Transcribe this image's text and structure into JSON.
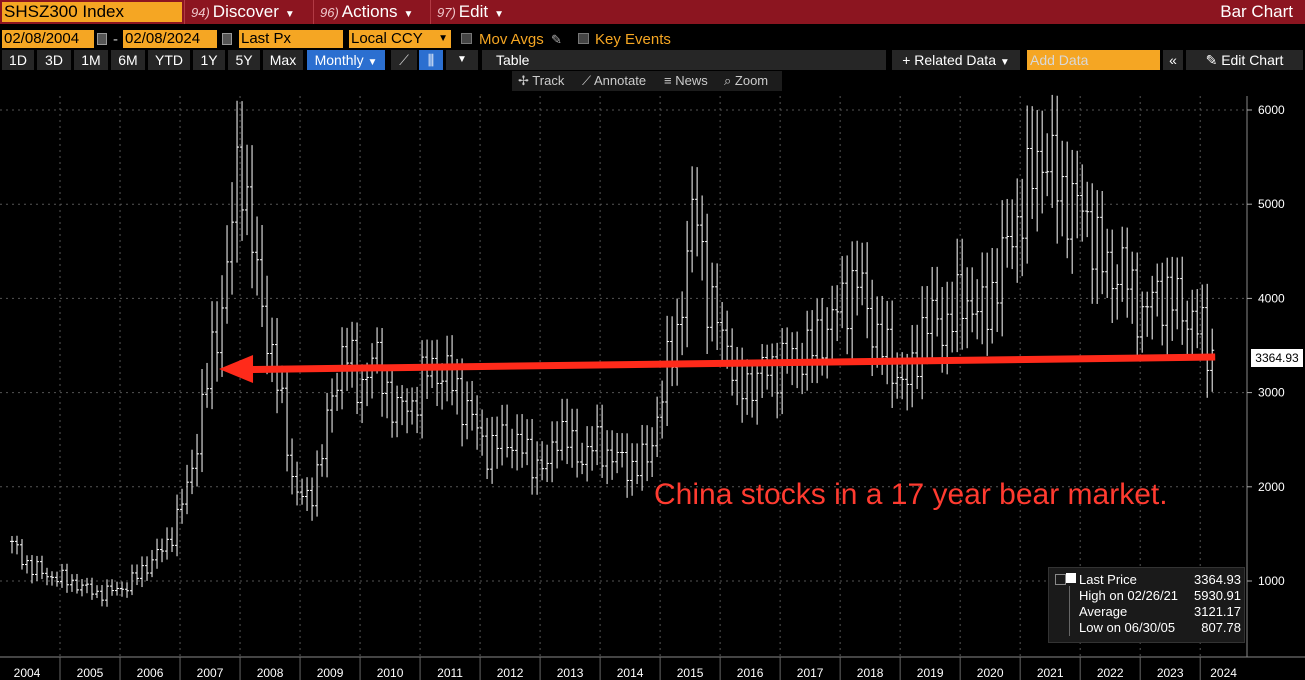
{
  "menubar": {
    "ticker": "SHSZ300 Index",
    "items": [
      {
        "num": "94)",
        "label": "Discover"
      },
      {
        "num": "96)",
        "label": "Actions"
      },
      {
        "num": "97)",
        "label": "Edit"
      }
    ],
    "chart_type_title": "Bar Chart"
  },
  "controls": {
    "start_date": "02/08/2004",
    "date_sep": "-",
    "end_date": "02/08/2024",
    "field": "Last Px",
    "currency": "Local CCY",
    "mov_avgs": "Mov Avgs",
    "key_events": "Key Events"
  },
  "periods": [
    "1D",
    "3D",
    "1M",
    "6M",
    "YTD",
    "1Y",
    "5Y",
    "Max"
  ],
  "frequency": "Monthly",
  "table_label": "Table",
  "related_data": "+ Related Data",
  "add_data_placeholder": "Add Data",
  "edit_chart": "Edit Chart",
  "tools": {
    "track": "Track",
    "annotate": "Annotate",
    "news": "News",
    "zoom": "Zoom"
  },
  "legend": {
    "last_price_label": "Last Price",
    "last_price_value": "3364.93",
    "high_label": "High on 02/26/21",
    "high_value": "5930.91",
    "avg_label": "Average",
    "avg_value": "3121.17",
    "low_label": "Low on 06/30/05",
    "low_value": "807.78"
  },
  "annotation_text": "China stocks in a 17 year bear market.",
  "last_price_tag": "3364.93",
  "colors": {
    "menubar": "#8c1520",
    "field": "#f5a623",
    "annotation": "#ff3b30",
    "selected": "#2b6fd0"
  },
  "chart_data": {
    "type": "bar",
    "xlabel": "",
    "ylabel": "",
    "ylim": [
      400,
      6300
    ],
    "yticks": [
      1000,
      2000,
      3000,
      4000,
      5000,
      6000
    ],
    "xticks": [
      "2004",
      "2005",
      "2006",
      "2007",
      "2008",
      "2009",
      "2010",
      "2011",
      "2012",
      "2013",
      "2014",
      "2015",
      "2016",
      "2017",
      "2018",
      "2019",
      "2020",
      "2021",
      "2022",
      "2023",
      "2024"
    ],
    "x_range": [
      2004.0,
      2024.28
    ],
    "grid": true,
    "arrow": {
      "from": {
        "x": 2024.05,
        "y": 3250
      },
      "to": {
        "x": 2007.45,
        "y": 3250
      }
    },
    "anchors": [
      [
        2004.0,
        1380
      ],
      [
        2004.3,
        1150
      ],
      [
        2004.6,
        1060
      ],
      [
        2004.95,
        1000
      ],
      [
        2005.45,
        860
      ],
      [
        2005.9,
        940
      ],
      [
        2006.3,
        1200
      ],
      [
        2006.6,
        1400
      ],
      [
        2006.95,
        2040
      ],
      [
        2007.3,
        3300
      ],
      [
        2007.55,
        4100
      ],
      [
        2007.8,
        5600
      ],
      [
        2008.1,
        4100
      ],
      [
        2008.4,
        3200
      ],
      [
        2008.7,
        2000
      ],
      [
        2008.95,
        1800
      ],
      [
        2009.3,
        2800
      ],
      [
        2009.55,
        3600
      ],
      [
        2009.75,
        3000
      ],
      [
        2010.0,
        3400
      ],
      [
        2010.4,
        2800
      ],
      [
        2010.7,
        2900
      ],
      [
        2010.95,
        3300
      ],
      [
        2011.3,
        3150
      ],
      [
        2011.6,
        2800
      ],
      [
        2011.95,
        2350
      ],
      [
        2012.2,
        2550
      ],
      [
        2012.5,
        2400
      ],
      [
        2012.9,
        2150
      ],
      [
        2013.1,
        2650
      ],
      [
        2013.45,
        2300
      ],
      [
        2013.7,
        2450
      ],
      [
        2013.95,
        2350
      ],
      [
        2014.3,
        2200
      ],
      [
        2014.6,
        2300
      ],
      [
        2014.9,
        3200
      ],
      [
        2015.1,
        3700
      ],
      [
        2015.4,
        5100
      ],
      [
        2015.6,
        3900
      ],
      [
        2015.9,
        3600
      ],
      [
        2016.1,
        3000
      ],
      [
        2016.45,
        3200
      ],
      [
        2016.9,
        3350
      ],
      [
        2017.3,
        3450
      ],
      [
        2017.7,
        3800
      ],
      [
        2017.95,
        4100
      ],
      [
        2018.1,
        4200
      ],
      [
        2018.4,
        3600
      ],
      [
        2018.75,
        3200
      ],
      [
        2018.95,
        3050
      ],
      [
        2019.2,
        3800
      ],
      [
        2019.5,
        3700
      ],
      [
        2019.9,
        4000
      ],
      [
        2020.2,
        3800
      ],
      [
        2020.5,
        4400
      ],
      [
        2020.85,
        5000
      ],
      [
        2021.15,
        5600
      ],
      [
        2021.5,
        5100
      ],
      [
        2021.9,
        4900
      ],
      [
        2022.2,
        4300
      ],
      [
        2022.5,
        4300
      ],
      [
        2022.85,
        3800
      ],
      [
        2023.1,
        4100
      ],
      [
        2023.5,
        3900
      ],
      [
        2023.85,
        3600
      ],
      [
        2024.1,
        3280
      ]
    ]
  }
}
